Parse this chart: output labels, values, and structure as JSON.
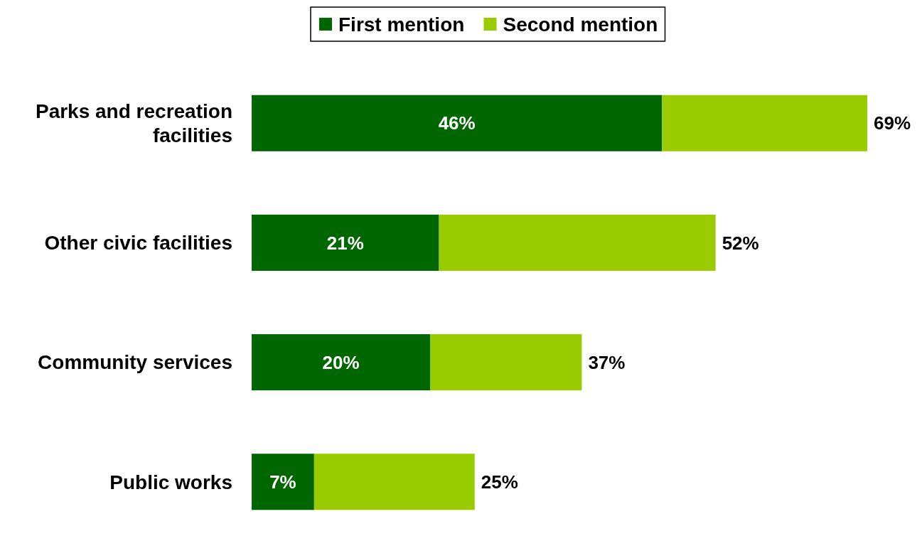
{
  "chart_data": {
    "type": "bar",
    "orientation": "horizontal",
    "stacked": true,
    "categories": [
      "Parks and recreation facilities",
      "Other civic facilities",
      "Community services",
      "Public works"
    ],
    "series": [
      {
        "name": "First mention",
        "color": "#006600",
        "values": [
          46,
          21,
          20,
          7
        ],
        "value_labels": [
          "46%",
          "21%",
          "20%",
          "7%"
        ]
      },
      {
        "name": "Second mention",
        "color": "#99cc00",
        "values": [
          23,
          31,
          17,
          18
        ]
      }
    ],
    "totals": [
      "69%",
      "52%",
      "37%",
      "25%"
    ],
    "legend": "top",
    "tick_labels": "y"
  }
}
